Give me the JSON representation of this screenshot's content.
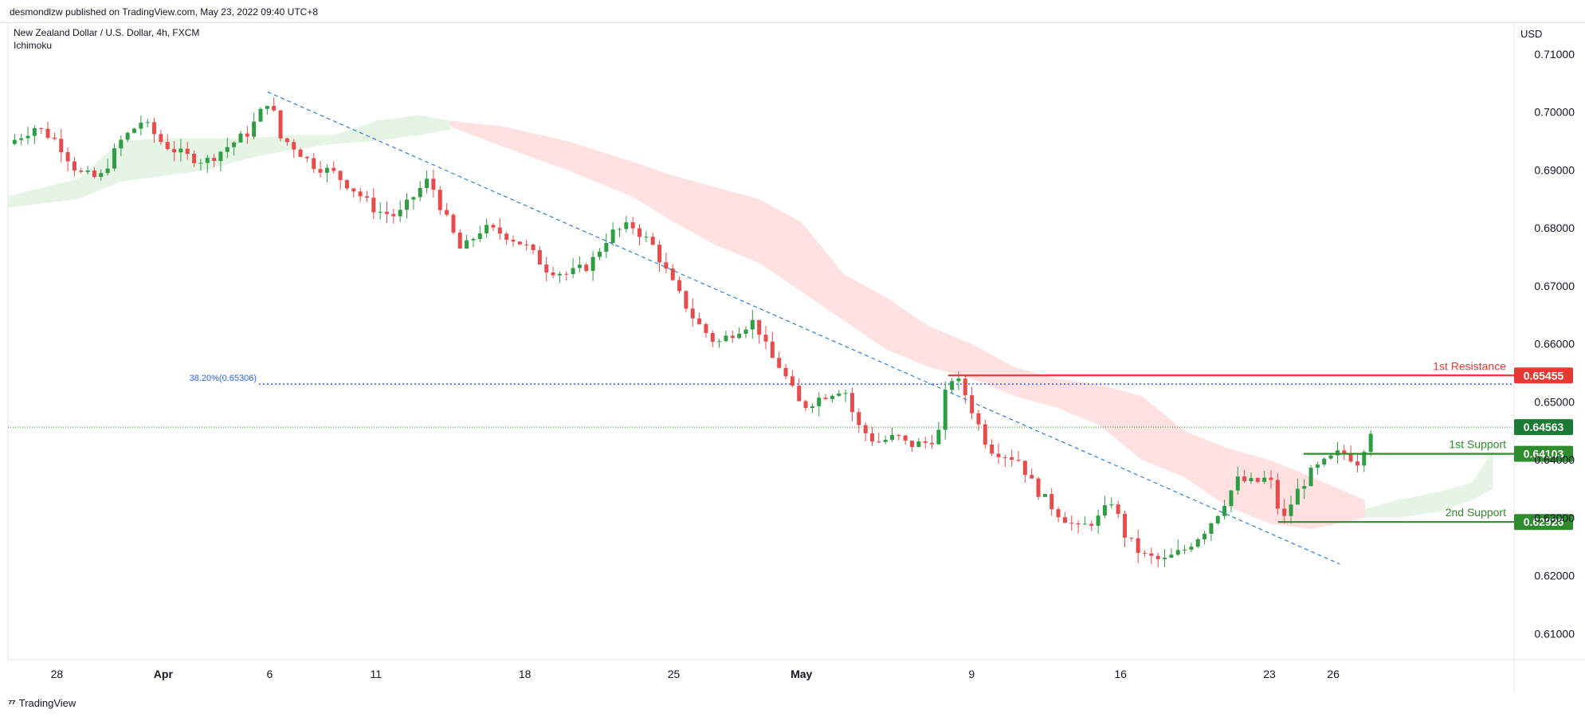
{
  "header": {
    "published": "desmondlzw published on TradingView.com, May 23, 2022 09:40 UTC+8"
  },
  "footer": {
    "brand": "TradingView",
    "logo_icon": "tradingview-logo-icon"
  },
  "chart_data": {
    "type": "candlestick",
    "title": "New Zealand Dollar / U.S. Dollar, 4h, FXCM",
    "subtitle": "Ichimoku",
    "currency": "USD",
    "ylim": [
      0.6055,
      0.7155
    ],
    "y_ticks": [
      "0.71000",
      "0.70000",
      "0.69000",
      "0.68000",
      "0.67000",
      "0.66000",
      "0.65000",
      "0.64000",
      "0.63000",
      "0.62000",
      "0.61000"
    ],
    "y_tick_values": [
      0.71,
      0.7,
      0.69,
      0.68,
      0.67,
      0.66,
      0.65,
      0.64,
      0.63,
      0.62,
      0.61
    ],
    "x_range_days": [
      -7.3,
      63.5
    ],
    "x_ticks": [
      {
        "label": "28",
        "day": -5
      },
      {
        "label": "Apr",
        "day": 0
      },
      {
        "label": "6",
        "day": 5
      },
      {
        "label": "11",
        "day": 10
      },
      {
        "label": "18",
        "day": 17
      },
      {
        "label": "25",
        "day": 24
      },
      {
        "label": "May",
        "day": 30
      },
      {
        "label": "9",
        "day": 38
      },
      {
        "label": "16",
        "day": 45
      },
      {
        "label": "23",
        "day": 52
      },
      {
        "label": "26",
        "day": 55
      }
    ],
    "grid": false,
    "colors": {
      "up": "#26a69a",
      "down": "#ef5350",
      "up_body": "#2e9d44",
      "down_body": "#e84b4b",
      "cloud_bull": "#e6f4e6",
      "cloud_bear": "#ffe1e1",
      "trendline": "#2f7fd7",
      "fib": "#2962ff",
      "resistance": "#e53935",
      "support": "#2e8b2e",
      "last_price_bg": "#1b7a33"
    },
    "anchors": [
      [
        -7.3,
        0.6945
      ],
      [
        -6,
        0.6975
      ],
      [
        -5,
        0.695
      ],
      [
        -4,
        0.6895
      ],
      [
        -3,
        0.6885
      ],
      [
        -2,
        0.695
      ],
      [
        -1,
        0.6985
      ],
      [
        0,
        0.6945
      ],
      [
        1,
        0.6925
      ],
      [
        2,
        0.6915
      ],
      [
        3,
        0.694
      ],
      [
        4,
        0.6965
      ],
      [
        5,
        0.7025
      ],
      [
        5.5,
        0.6955
      ],
      [
        6,
        0.6945
      ],
      [
        7,
        0.691
      ],
      [
        8,
        0.6895
      ],
      [
        9,
        0.6865
      ],
      [
        10,
        0.683
      ],
      [
        11,
        0.682
      ],
      [
        12,
        0.6865
      ],
      [
        12.5,
        0.6885
      ],
      [
        13,
        0.684
      ],
      [
        14,
        0.676
      ],
      [
        15,
        0.68
      ],
      [
        16,
        0.679
      ],
      [
        17,
        0.677
      ],
      [
        18,
        0.673
      ],
      [
        19,
        0.672
      ],
      [
        20,
        0.6735
      ],
      [
        21,
        0.679
      ],
      [
        22,
        0.6805
      ],
      [
        23,
        0.677
      ],
      [
        24,
        0.67
      ],
      [
        25,
        0.664
      ],
      [
        26,
        0.66
      ],
      [
        27,
        0.6625
      ],
      [
        27.8,
        0.664
      ],
      [
        28.5,
        0.658
      ],
      [
        29,
        0.656
      ],
      [
        30,
        0.649
      ],
      [
        31,
        0.651
      ],
      [
        32,
        0.6525
      ],
      [
        32.6,
        0.646
      ],
      [
        33.5,
        0.643
      ],
      [
        34.5,
        0.644
      ],
      [
        35,
        0.6425
      ],
      [
        36,
        0.643
      ],
      [
        36.5,
        0.645
      ],
      [
        36.9,
        0.6545
      ],
      [
        37.5,
        0.653
      ],
      [
        38.2,
        0.647
      ],
      [
        38.8,
        0.642
      ],
      [
        39.5,
        0.641
      ],
      [
        40.2,
        0.64
      ],
      [
        41,
        0.635
      ],
      [
        42,
        0.631
      ],
      [
        43,
        0.628
      ],
      [
        44,
        0.63
      ],
      [
        44.6,
        0.633
      ],
      [
        45.2,
        0.627
      ],
      [
        46,
        0.6235
      ],
      [
        47,
        0.6225
      ],
      [
        48,
        0.6245
      ],
      [
        49,
        0.628
      ],
      [
        49.6,
        0.631
      ],
      [
        50.5,
        0.6365
      ],
      [
        51.3,
        0.636
      ],
      [
        52,
        0.637
      ],
      [
        52.6,
        0.629
      ],
      [
        53.2,
        0.634
      ],
      [
        54,
        0.638
      ],
      [
        54.8,
        0.64
      ],
      [
        55.4,
        0.6415
      ],
      [
        56.2,
        0.6395
      ],
      [
        56.7,
        0.645
      ],
      [
        57,
        0.6458
      ]
    ],
    "cloud": {
      "bull_segments": [
        [
          [
            -7.3,
            0.6835,
            0.6855
          ],
          [
            -4,
            0.685,
            0.6885
          ],
          [
            -2,
            0.688,
            0.695
          ],
          [
            0,
            0.689,
            0.6955
          ],
          [
            2,
            0.69,
            0.6955
          ],
          [
            4,
            0.692,
            0.6955
          ],
          [
            6,
            0.6935,
            0.696
          ],
          [
            8,
            0.6945,
            0.696
          ],
          [
            10,
            0.695,
            0.6985
          ],
          [
            12,
            0.696,
            0.6995
          ],
          [
            13.5,
            0.697,
            0.6985
          ]
        ],
        [
          [
            56.5,
            0.63,
            0.6315
          ],
          [
            58,
            0.63,
            0.633
          ],
          [
            60,
            0.631,
            0.6345
          ],
          [
            61.5,
            0.633,
            0.636
          ],
          [
            62.5,
            0.635,
            0.6415
          ]
        ]
      ],
      "bear_segments": [
        [
          [
            13.5,
            0.6985,
            0.6975
          ],
          [
            16,
            0.6975,
            0.694
          ],
          [
            19,
            0.695,
            0.69
          ],
          [
            22,
            0.6915,
            0.6855
          ],
          [
            24,
            0.689,
            0.681
          ],
          [
            26,
            0.687,
            0.677
          ],
          [
            28,
            0.685,
            0.674
          ],
          [
            30,
            0.681,
            0.669
          ],
          [
            32,
            0.672,
            0.664
          ],
          [
            34,
            0.668,
            0.659
          ],
          [
            36,
            0.663,
            0.656
          ],
          [
            38,
            0.66,
            0.654
          ],
          [
            40,
            0.656,
            0.651
          ],
          [
            42,
            0.654,
            0.649
          ],
          [
            44,
            0.653,
            0.646
          ],
          [
            46,
            0.651,
            0.64
          ],
          [
            48,
            0.645,
            0.637
          ],
          [
            50,
            0.642,
            0.632
          ],
          [
            52,
            0.64,
            0.629
          ],
          [
            54,
            0.637,
            0.628
          ],
          [
            56.5,
            0.633,
            0.63
          ]
        ]
      ]
    },
    "trendline": {
      "from": [
        4.9,
        0.7035
      ],
      "to": [
        55.3,
        0.622
      ]
    },
    "fib": {
      "label": "38.20%(0.65306)",
      "value": 0.65306,
      "from_day": 4.5,
      "to_day": 63.5
    },
    "levels": [
      {
        "name": "1st Resistance",
        "value": 0.65455,
        "label": "0.65455",
        "kind": "resistance",
        "from_day": 36.9
      },
      {
        "name": "1st Support",
        "value": 0.64103,
        "label": "0.64103",
        "kind": "support",
        "from_day": 53.6
      },
      {
        "name": "2nd Support",
        "value": 0.62926,
        "label": "0.62926",
        "kind": "support",
        "from_day": 52.4
      }
    ],
    "last_price": {
      "value": 0.64563,
      "label": "0.64563"
    }
  }
}
